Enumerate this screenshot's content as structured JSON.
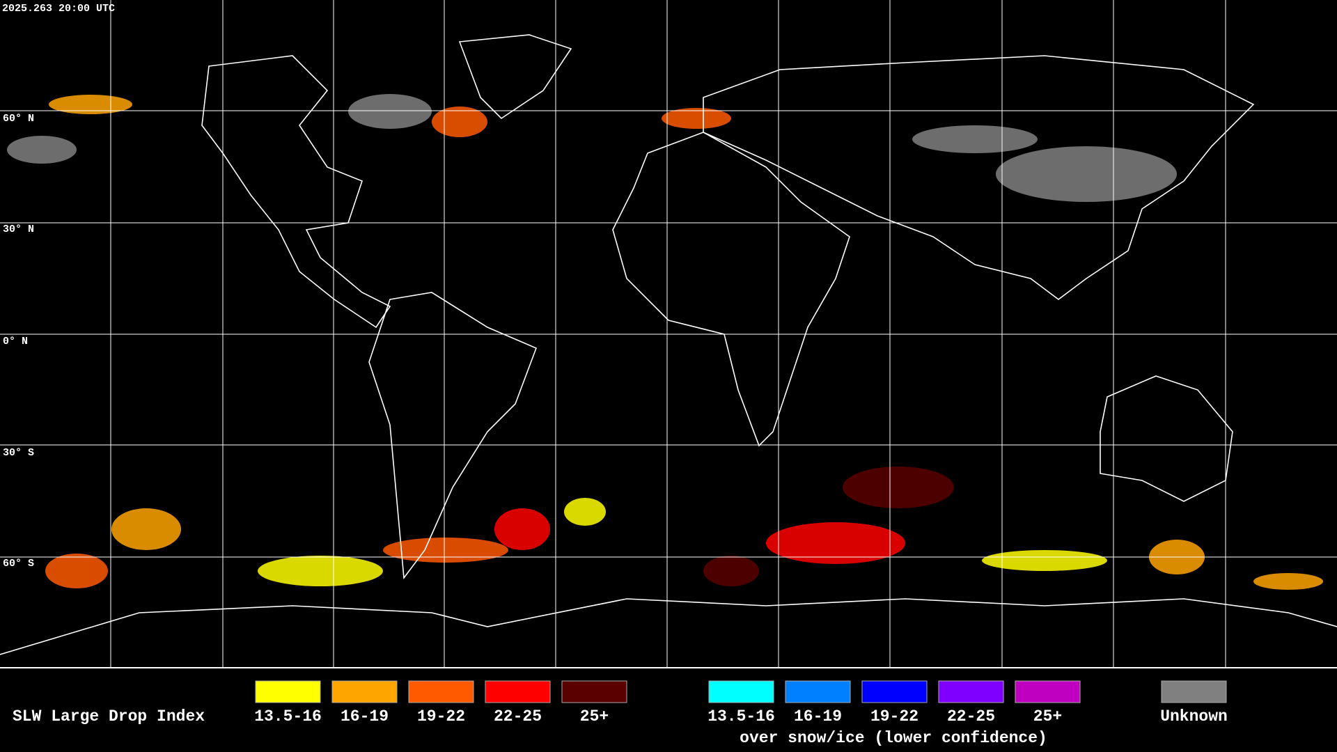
{
  "timestamp": "2025.263 20:00 UTC",
  "latitude_labels": [
    "60° N",
    "30° N",
    "0° N",
    "30° S",
    "60° S"
  ],
  "legend": {
    "title": "SLW Large Drop Index",
    "groups": [
      {
        "items": [
          {
            "label": "13.5-16",
            "color": "#ffff00"
          },
          {
            "label": "16-19",
            "color": "#ffa500"
          },
          {
            "label": "19-22",
            "color": "#ff5a00"
          },
          {
            "label": "22-25",
            "color": "#ff0000"
          },
          {
            "label": "25+",
            "color": "#5a0000"
          }
        ]
      },
      {
        "items": [
          {
            "label": "13.5-16",
            "color": "#00ffff"
          },
          {
            "label": "16-19",
            "color": "#0080ff"
          },
          {
            "label": "19-22",
            "color": "#0000ff"
          },
          {
            "label": "22-25",
            "color": "#8000ff"
          },
          {
            "label": "25+",
            "color": "#c000c0"
          }
        ],
        "caption": "over snow/ice (lower confidence)"
      },
      {
        "items": [
          {
            "label": "Unknown",
            "color": "#808080"
          }
        ]
      }
    ]
  }
}
